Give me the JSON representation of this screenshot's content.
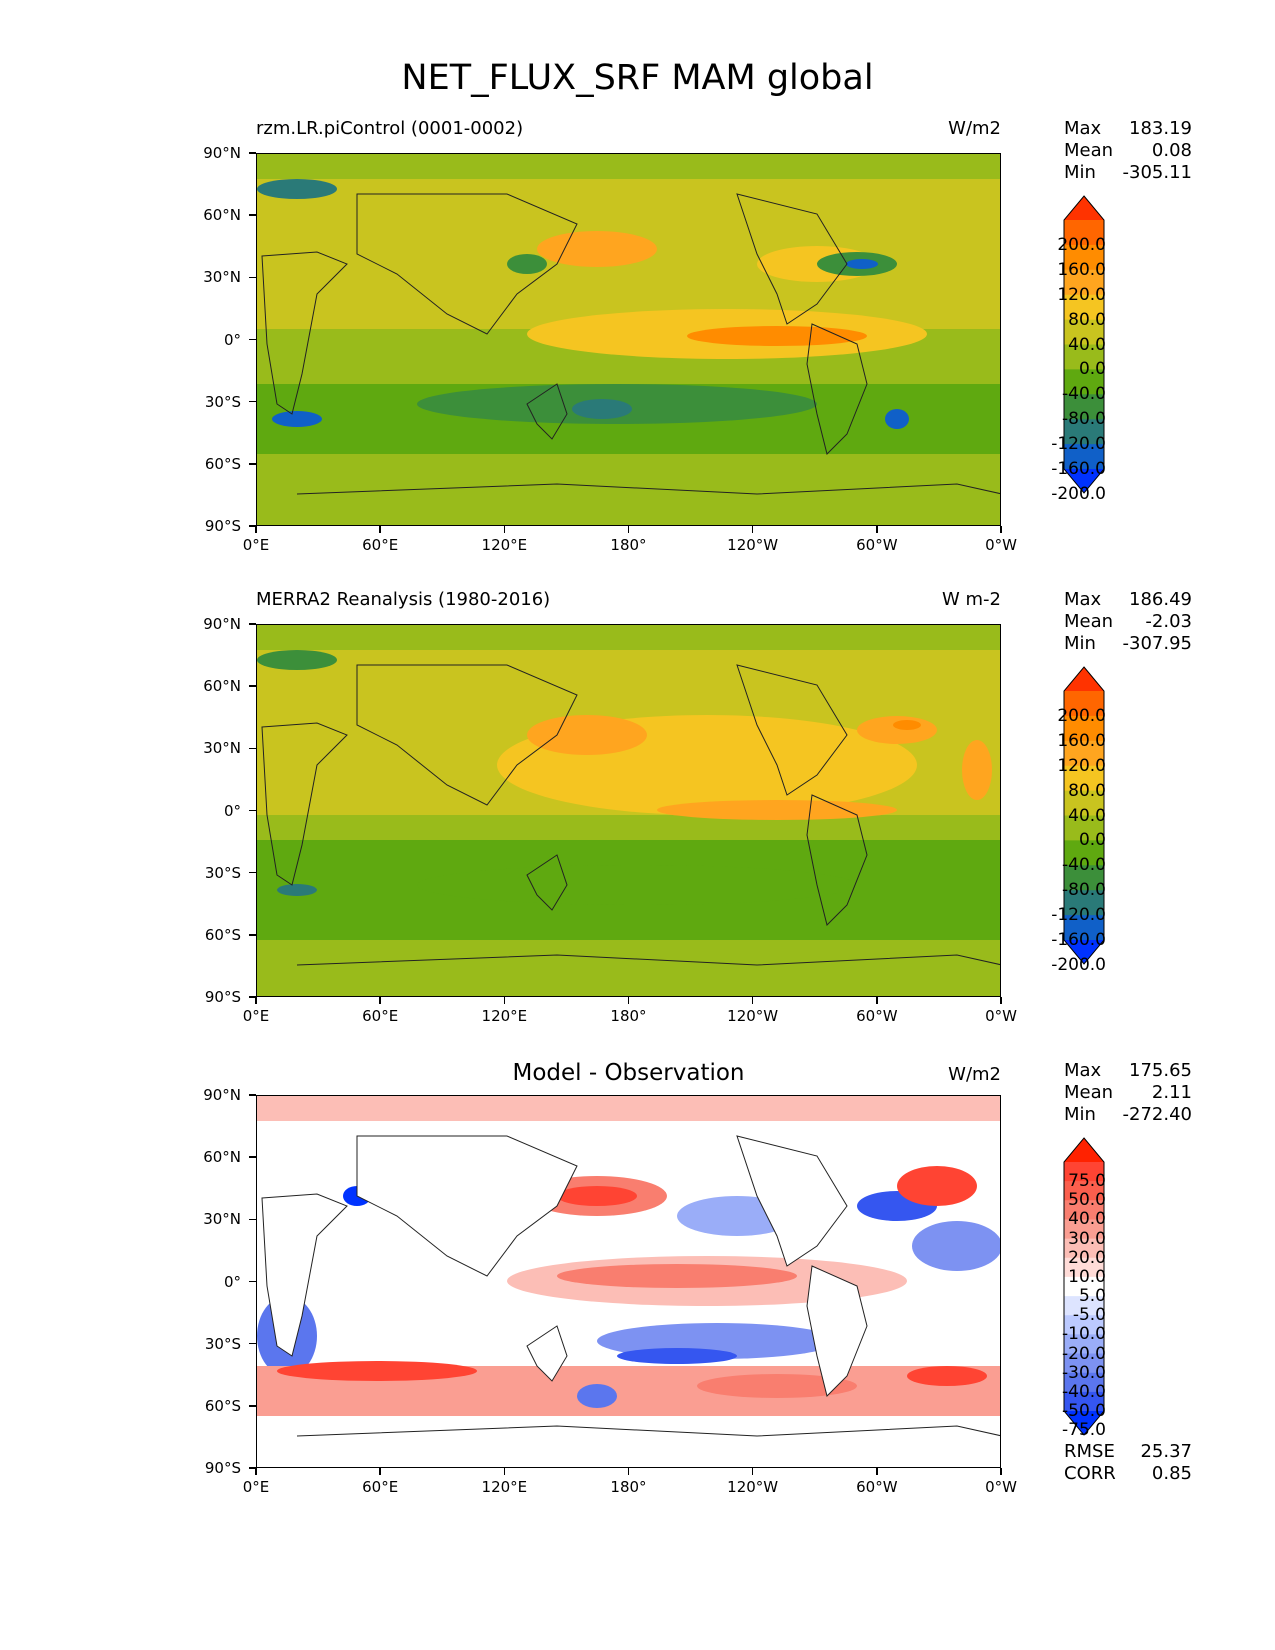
{
  "figure": {
    "title": "NET_FLUX_SRF MAM global"
  },
  "axes": {
    "y_ticks": [
      "90°N",
      "60°N",
      "30°N",
      "0°",
      "30°S",
      "60°S",
      "90°S"
    ],
    "x_ticks": [
      "0°E",
      "60°E",
      "120°E",
      "180°",
      "120°W",
      "60°W",
      "0°W"
    ]
  },
  "panels": [
    {
      "title_left": "rzm.LR.piControl (0001-0002)",
      "title_right": "W/m2",
      "stats": [
        {
          "label": "Max",
          "value": "183.19"
        },
        {
          "label": "Mean",
          "value": "0.08"
        },
        {
          "label": "Min",
          "value": "-305.11"
        }
      ],
      "colorbar_labels": [
        "200.0",
        "160.0",
        "120.0",
        "80.0",
        "40.0",
        "0.0",
        "-40.0",
        "-80.0",
        "-120.0",
        "-160.0",
        "-200.0"
      ],
      "colorbar_colors": [
        "#ff3300",
        "#ff6600",
        "#ff8c00",
        "#ffa51f",
        "#f5c521",
        "#c9c41f",
        "#99bb1b",
        "#5fa910",
        "#3c8f3a",
        "#2a7a78",
        "#1060c8",
        "#0032ff"
      ]
    },
    {
      "title_left": "MERRA2 Reanalysis (1980-2016)",
      "title_right": "W m-2",
      "stats": [
        {
          "label": "Max",
          "value": "186.49"
        },
        {
          "label": "Mean",
          "value": "-2.03"
        },
        {
          "label": "Min",
          "value": "-307.95"
        }
      ],
      "colorbar_labels": [
        "200.0",
        "160.0",
        "120.0",
        "80.0",
        "40.0",
        "0.0",
        "-40.0",
        "-80.0",
        "-120.0",
        "-160.0",
        "-200.0"
      ],
      "colorbar_colors": [
        "#ff3300",
        "#ff6600",
        "#ff8c00",
        "#ffa51f",
        "#f5c521",
        "#c9c41f",
        "#99bb1b",
        "#5fa910",
        "#3c8f3a",
        "#2a7a78",
        "#1060c8",
        "#0032ff"
      ]
    },
    {
      "title_center": "Model - Observation",
      "title_right": "W/m2",
      "stats": [
        {
          "label": "Max",
          "value": "175.65"
        },
        {
          "label": "Mean",
          "value": "2.11"
        },
        {
          "label": "Min",
          "value": "-272.40"
        }
      ],
      "colorbar_labels": [
        "75.0",
        "50.0",
        "40.0",
        "30.0",
        "20.0",
        "10.0",
        "5.0",
        "-5.0",
        "-10.0",
        "-20.0",
        "-30.0",
        "-40.0",
        "-50.0",
        "-75.0"
      ],
      "colorbar_colors": [
        "#ff2200",
        "#ff4433",
        "#fb5f4d",
        "#f97e6f",
        "#fa9e92",
        "#fcbeb6",
        "#ffdcd8",
        "#ffffff",
        "#dde4ff",
        "#bccaff",
        "#9aadf8",
        "#7d92f2",
        "#5b76ee",
        "#3556f0",
        "#0033ff"
      ],
      "rmse_label": "RMSE",
      "rmse_value": "25.37",
      "corr_label": "CORR",
      "corr_value": "0.85"
    }
  ]
}
